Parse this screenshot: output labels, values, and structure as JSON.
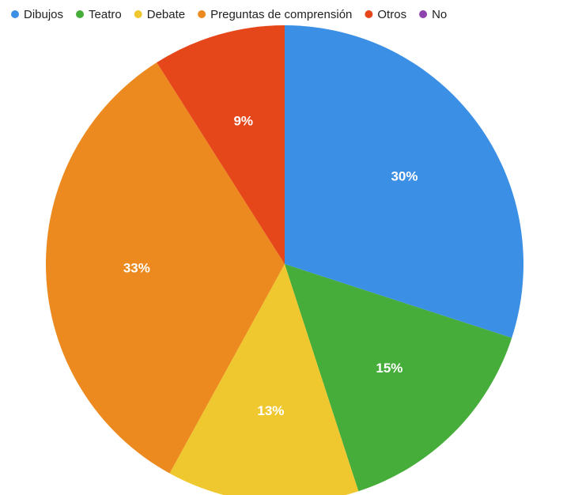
{
  "chart_data": {
    "type": "pie",
    "categories": [
      "Dibujos",
      "Teatro",
      "Debate",
      "Preguntas de comprensión",
      "Otros",
      "No"
    ],
    "values": [
      30,
      15,
      13,
      33,
      9,
      0
    ],
    "value_labels": [
      "30%",
      "15%",
      "13%",
      "33%",
      "9%",
      null
    ],
    "colors": [
      "#3b8fe4",
      "#46ac3a",
      "#efc82f",
      "#ec8a1f",
      "#e5471b",
      "#8e44ad"
    ],
    "legend": "top"
  }
}
